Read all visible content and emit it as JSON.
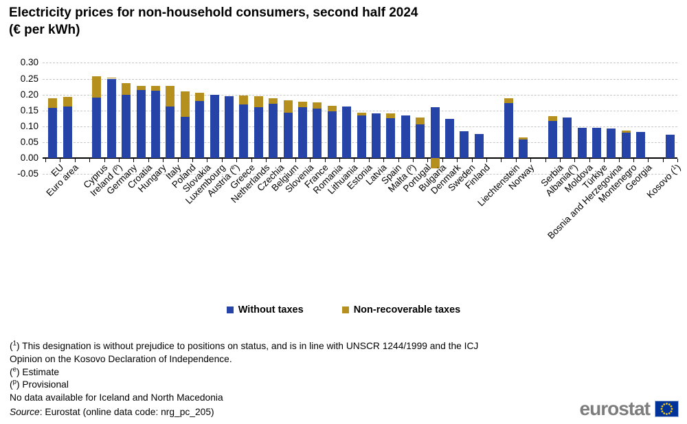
{
  "title": {
    "line1": "Electricity prices for non-household consumers, second half 2024",
    "line2": "(€ per kWh)"
  },
  "chart_data": {
    "type": "bar",
    "stacked": true,
    "title": "Electricity prices for non-household consumers, second half 2024 (€ per kWh)",
    "ylabel": "",
    "xlabel": "",
    "unit": "€ per kWh",
    "ylim": [
      -0.05,
      0.3
    ],
    "ytick_labels": [
      "0.30",
      "0.25",
      "0.20",
      "0.15",
      "0.10",
      "0.05",
      "0.00",
      "-0.05"
    ],
    "ytick_values": [
      0.3,
      0.25,
      0.2,
      0.15,
      0.1,
      0.05,
      0.0,
      -0.05
    ],
    "grid": "horizontal-dashed",
    "legend_position": "bottom-center",
    "series_names": [
      "Without taxes",
      "Non-recoverable taxes"
    ],
    "colors": {
      "without_taxes": "#2644a7",
      "non_recoverable_taxes": "#b5901e"
    },
    "gaps_after": [
      "Euro area",
      "Finland",
      "Norway",
      "Georgia"
    ],
    "categories": [
      {
        "label": "EU",
        "without": 0.157,
        "tax": 0.031
      },
      {
        "label": "Euro area",
        "without": 0.163,
        "tax": 0.03
      },
      {
        "label": "Cyprus",
        "without": 0.19,
        "tax": 0.068
      },
      {
        "label": "Ireland (p)",
        "without": 0.25,
        "tax": 0.004
      },
      {
        "label": "Germany",
        "without": 0.199,
        "tax": 0.036
      },
      {
        "label": "Croatia",
        "without": 0.214,
        "tax": 0.014
      },
      {
        "label": "Hungary",
        "without": 0.212,
        "tax": 0.015
      },
      {
        "label": "Italy",
        "without": 0.162,
        "tax": 0.065
      },
      {
        "label": "Poland",
        "without": 0.13,
        "tax": 0.079
      },
      {
        "label": "Slovakia",
        "without": 0.179,
        "tax": 0.027
      },
      {
        "label": "Luxembourg",
        "without": 0.2,
        "tax": 0.0
      },
      {
        "label": "Austria (e)",
        "without": 0.195,
        "tax": 0.0
      },
      {
        "label": "Greece",
        "without": 0.168,
        "tax": 0.03
      },
      {
        "label": "Netherlands",
        "without": 0.16,
        "tax": 0.034
      },
      {
        "label": "Czechia",
        "without": 0.172,
        "tax": 0.017
      },
      {
        "label": "Belgium",
        "without": 0.143,
        "tax": 0.039
      },
      {
        "label": "Slovenia",
        "without": 0.161,
        "tax": 0.017
      },
      {
        "label": "France",
        "without": 0.155,
        "tax": 0.02
      },
      {
        "label": "Romania",
        "without": 0.147,
        "tax": 0.018
      },
      {
        "label": "Lithuania",
        "without": 0.162,
        "tax": 0.0
      },
      {
        "label": "Estonia",
        "without": 0.134,
        "tax": 0.009
      },
      {
        "label": "Latvia",
        "without": 0.141,
        "tax": 0.0
      },
      {
        "label": "Spain",
        "without": 0.126,
        "tax": 0.014
      },
      {
        "label": "Malta (p)",
        "without": 0.134,
        "tax": 0.0
      },
      {
        "label": "Portugal",
        "without": 0.106,
        "tax": 0.022
      },
      {
        "label": "Bulgaria",
        "without": 0.16,
        "tax": -0.032
      },
      {
        "label": "Denmark",
        "without": 0.123,
        "tax": 0.0
      },
      {
        "label": "Sweden",
        "without": 0.084,
        "tax": 0.0
      },
      {
        "label": "Finland",
        "without": 0.076,
        "tax": 0.0
      },
      {
        "label": "Liechtenstein",
        "without": 0.173,
        "tax": 0.015
      },
      {
        "label": "Norway",
        "without": 0.058,
        "tax": 0.008
      },
      {
        "label": "Serbia",
        "without": 0.116,
        "tax": 0.016
      },
      {
        "label": "Albania(e)",
        "without": 0.127,
        "tax": 0.0
      },
      {
        "label": "Moldova",
        "without": 0.096,
        "tax": 0.0
      },
      {
        "label": "Türkiye",
        "without": 0.095,
        "tax": 0.0
      },
      {
        "label": "Bosnia and Herzegovina",
        "without": 0.093,
        "tax": 0.0
      },
      {
        "label": "Montenegro",
        "without": 0.08,
        "tax": 0.006
      },
      {
        "label": "Georgia",
        "without": 0.082,
        "tax": 0.0
      },
      {
        "label": "Kosovo (1)",
        "without": 0.073,
        "tax": 0.0
      }
    ]
  },
  "legend": {
    "items": [
      {
        "label": "Without taxes",
        "color": "#2644a7"
      },
      {
        "label": "Non-recoverable taxes",
        "color": "#b5901e"
      }
    ]
  },
  "footnotes": [
    "(1) This designation is without prejudice to positions on status, and is in line with UNSCR 1244/1999 and the ICJ",
    "Opinion on the Kosovo Declaration of Independence.",
    "(e) Estimate",
    "(p) Provisional",
    "No data available for Iceland and North Macedonia"
  ],
  "source": {
    "label": "Source",
    "rest": ": Eurostat (online data code: nrg_pc_205)"
  },
  "logo": {
    "text": "eurostat"
  }
}
